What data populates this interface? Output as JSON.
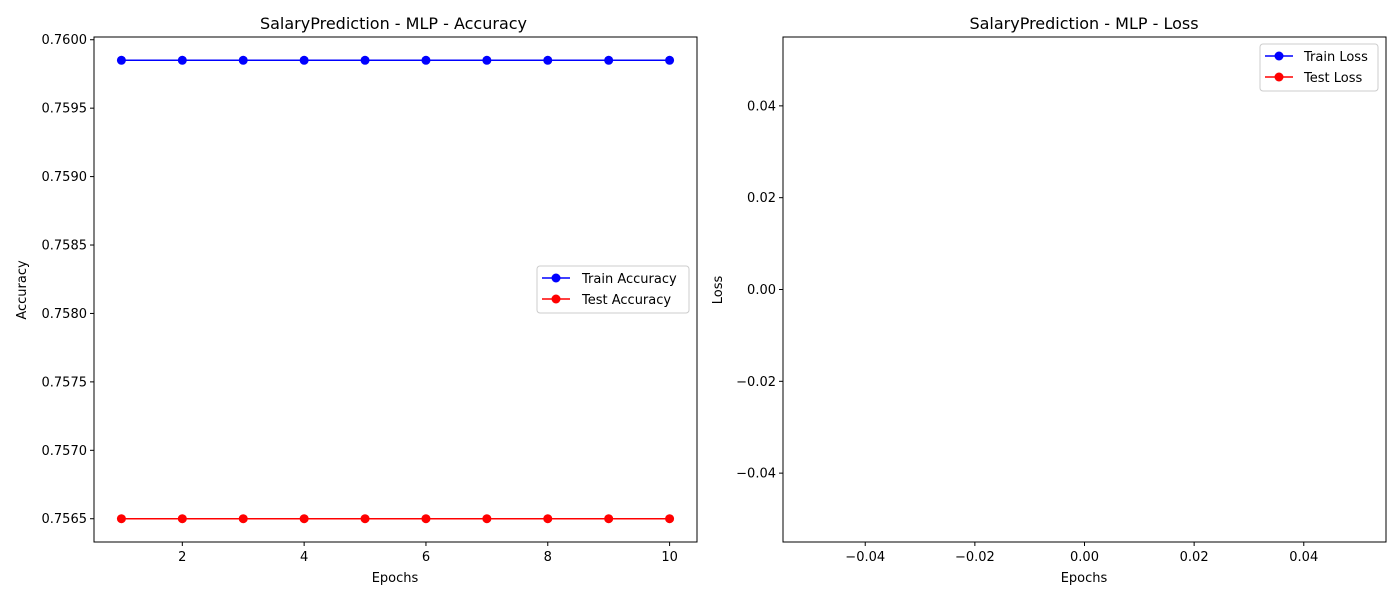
{
  "chart_data": [
    {
      "type": "line",
      "title": "SalaryPrediction - MLP - Accuracy",
      "xlabel": "Epochs",
      "ylabel": "Accuracy",
      "xlim": [
        0.55,
        10.45
      ],
      "ylim": [
        0.75633,
        0.76002
      ],
      "xticks": [
        2,
        4,
        6,
        8,
        10
      ],
      "yticks": [
        0.7565,
        0.757,
        0.7575,
        0.758,
        0.7585,
        0.759,
        0.7595,
        0.76
      ],
      "ytick_labels": [
        "0.7565",
        "0.7570",
        "0.7575",
        "0.7580",
        "0.7585",
        "0.7590",
        "0.7595",
        "0.7600"
      ],
      "grid": false,
      "legend_position": "center-right",
      "x": [
        1,
        2,
        3,
        4,
        5,
        6,
        7,
        8,
        9,
        10
      ],
      "series": [
        {
          "name": "Train Accuracy",
          "color": "#0000ff",
          "marker": "circle",
          "values": [
            0.75985,
            0.75985,
            0.75985,
            0.75985,
            0.75985,
            0.75985,
            0.75985,
            0.75985,
            0.75985,
            0.75985
          ]
        },
        {
          "name": "Test Accuracy",
          "color": "#ff0000",
          "marker": "circle",
          "values": [
            0.7565,
            0.7565,
            0.7565,
            0.7565,
            0.7565,
            0.7565,
            0.7565,
            0.7565,
            0.7565,
            0.7565
          ]
        }
      ]
    },
    {
      "type": "line",
      "title": "SalaryPrediction - MLP - Loss",
      "xlabel": "Epochs",
      "ylabel": "Loss",
      "xlim": [
        -0.055,
        0.055
      ],
      "ylim": [
        -0.055,
        0.055
      ],
      "xticks": [
        -0.04,
        -0.02,
        0.0,
        0.02,
        0.04
      ],
      "xtick_labels": [
        "−0.04",
        "−0.02",
        "0.00",
        "0.02",
        "0.04"
      ],
      "yticks": [
        -0.04,
        -0.02,
        0.0,
        0.02,
        0.04
      ],
      "ytick_labels": [
        "−0.04",
        "−0.02",
        "0.00",
        "0.02",
        "0.04"
      ],
      "grid": false,
      "legend_position": "upper-right",
      "x": [],
      "series": [
        {
          "name": "Train Loss",
          "color": "#0000ff",
          "marker": "circle",
          "values": []
        },
        {
          "name": "Test Loss",
          "color": "#ff0000",
          "marker": "circle",
          "values": []
        }
      ]
    }
  ]
}
